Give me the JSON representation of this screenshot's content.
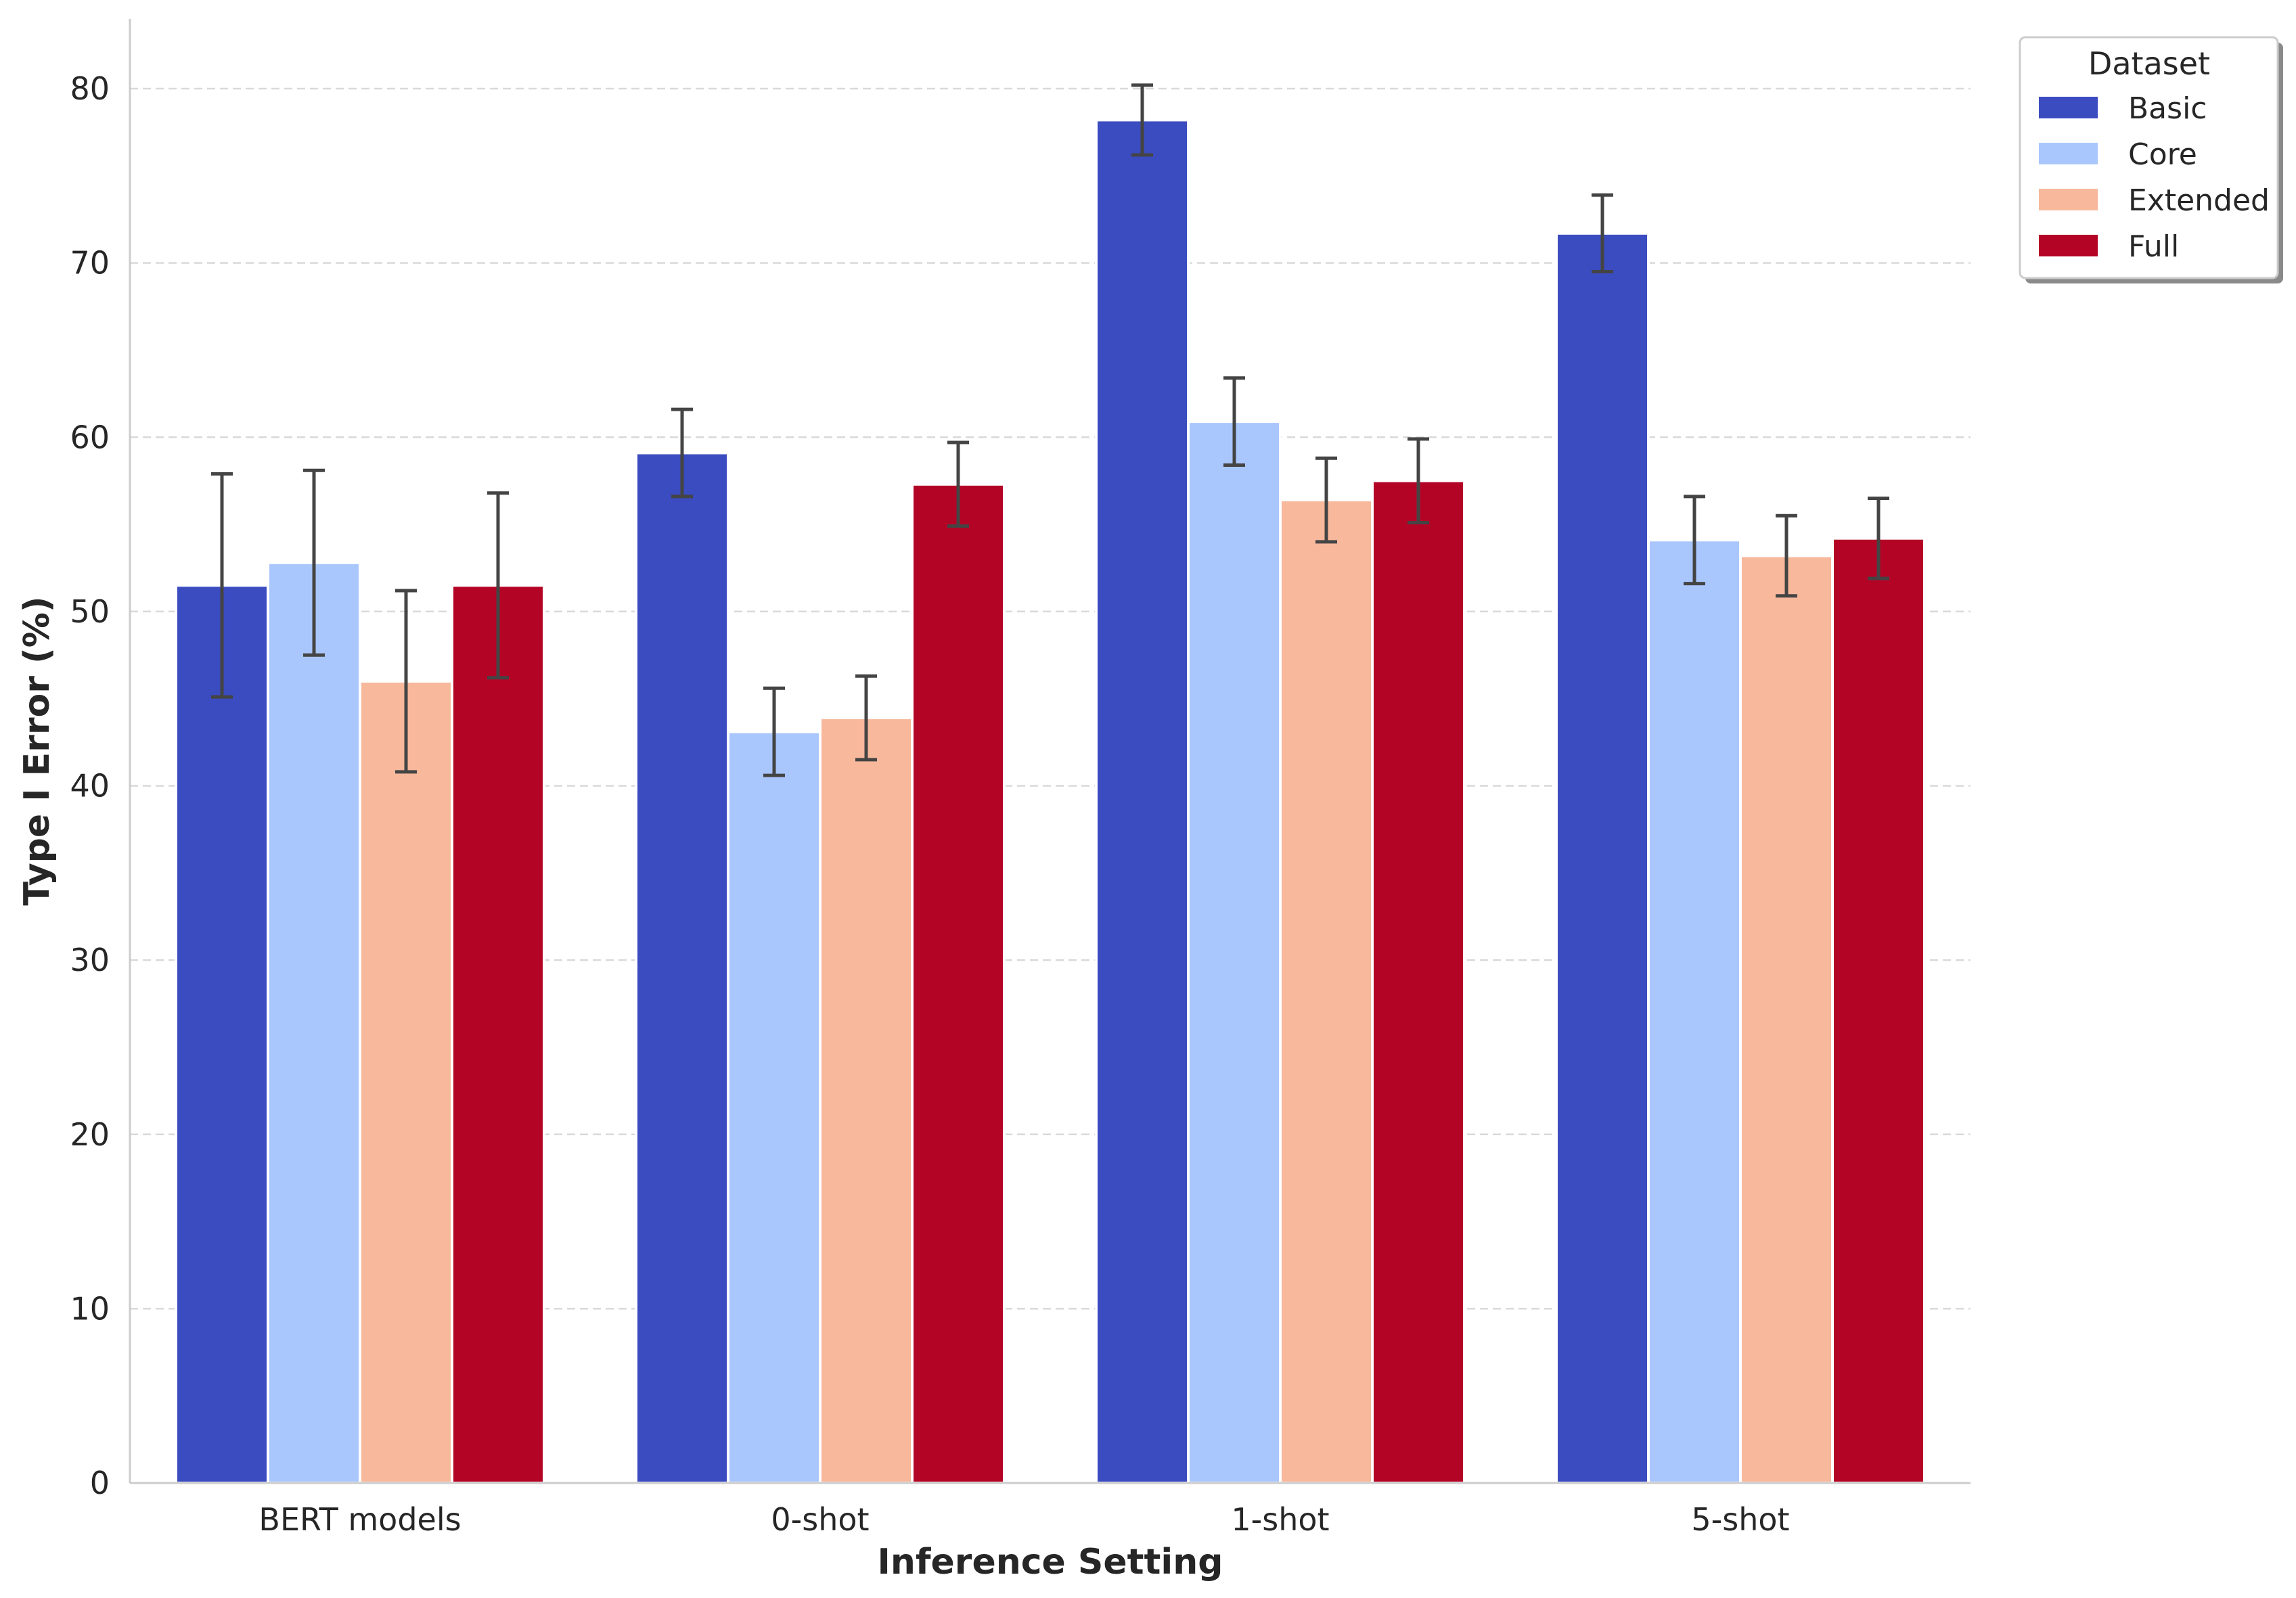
{
  "chart_data": {
    "type": "bar",
    "title": "",
    "xlabel": "Inference Setting",
    "ylabel": "Type I Error (%)",
    "ylim": [
      0,
      84
    ],
    "yticks": [
      0,
      10,
      20,
      30,
      40,
      50,
      60,
      70,
      80
    ],
    "grid": "horizontal dashed",
    "legend_title": "Dataset",
    "legend_position": "top-right, outside plot",
    "categories": [
      "BERT models",
      "0-shot",
      "1-shot",
      "5-shot"
    ],
    "series": [
      {
        "name": "Basic",
        "color": "#3b4cc0",
        "values": [
          51.5,
          59.1,
          78.2,
          71.7
        ],
        "error": [
          6.4,
          2.5,
          2.0,
          2.2
        ]
      },
      {
        "name": "Core",
        "color": "#aac7fd",
        "values": [
          52.8,
          43.1,
          60.9,
          54.1
        ],
        "error": [
          5.3,
          2.5,
          2.5,
          2.5
        ]
      },
      {
        "name": "Extended",
        "color": "#f7b89c",
        "values": [
          46.0,
          43.9,
          56.4,
          53.2
        ],
        "error": [
          5.2,
          2.4,
          2.4,
          2.3
        ]
      },
      {
        "name": "Full",
        "color": "#b40426",
        "values": [
          51.5,
          57.3,
          57.5,
          54.2
        ],
        "error": [
          5.3,
          2.4,
          2.4,
          2.3
        ]
      }
    ]
  }
}
